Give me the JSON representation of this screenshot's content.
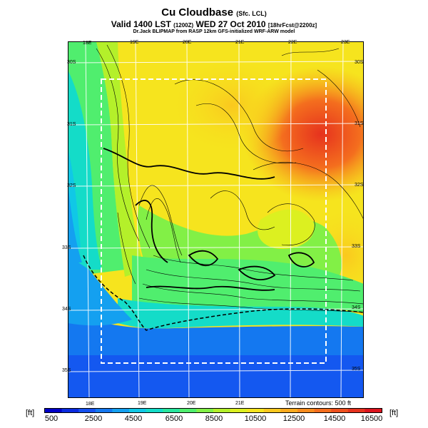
{
  "header": {
    "title": "Cu Cloudbase",
    "title_qualifier": "(Sfc. LCL)",
    "valid_line": "Valid 1400 LST",
    "valid_utc": "(1200Z)",
    "valid_date": "WED 27 Oct 2010",
    "forecast_tag": "[18hrFcst@2200z]",
    "credit": "Dr.Jack BLIPMAP from RASP 12km GFS-initialized WRF-ARW model"
  },
  "map": {
    "lon_labels_top": [
      "18E",
      "19E",
      "20E",
      "21E",
      "22E",
      "23E"
    ],
    "lon_labels_bottom": [
      "18E",
      "19E",
      "20E",
      "21E"
    ],
    "lat_labels_left": [
      "30S",
      "31S",
      "32S",
      "33S",
      "34S",
      "35S"
    ],
    "lat_labels_right": [
      "30S",
      "31S",
      "32S",
      "33S",
      "34S",
      "35S"
    ],
    "contour_note": "Terrain contours: 500 ft"
  },
  "colorbar": {
    "unit": "[ft]",
    "labels": [
      "500",
      "2500",
      "4500",
      "6500",
      "8500",
      "10500",
      "12500",
      "14500",
      "16500"
    ],
    "colors": [
      "#0000c8",
      "#0a2ae0",
      "#1450f0",
      "#1478f0",
      "#14a0f0",
      "#10c8e6",
      "#14dcc8",
      "#28e69e",
      "#50ee6e",
      "#82f046",
      "#b4f02a",
      "#dcf020",
      "#f6e41e",
      "#fac81e",
      "#faaa1e",
      "#f88c1e",
      "#f46e1e",
      "#ee501e",
      "#e6321e",
      "#dc141e"
    ]
  }
}
